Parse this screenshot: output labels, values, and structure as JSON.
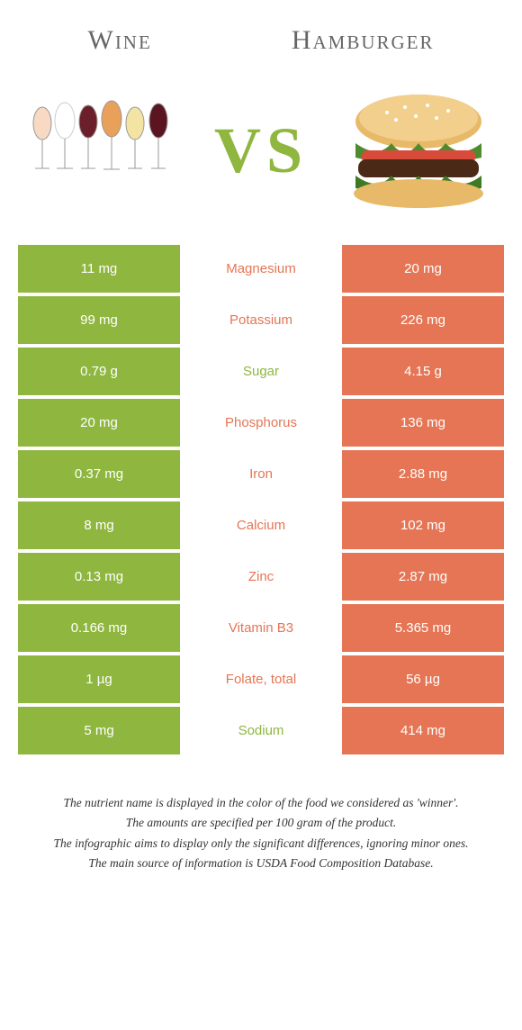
{
  "header": {
    "left": "Wine",
    "right": "Hamburger"
  },
  "vs_text": "VS",
  "colors": {
    "wine": "#8fb63f",
    "hamburger": "#e57554",
    "wine_text": "#8fb63f",
    "hamburger_text": "#e57554"
  },
  "rows": [
    {
      "nutrient": "Magnesium",
      "left": "11 mg",
      "right": "20 mg",
      "winner": "hamburger"
    },
    {
      "nutrient": "Potassium",
      "left": "99 mg",
      "right": "226 mg",
      "winner": "hamburger"
    },
    {
      "nutrient": "Sugar",
      "left": "0.79 g",
      "right": "4.15 g",
      "winner": "wine"
    },
    {
      "nutrient": "Phosphorus",
      "left": "20 mg",
      "right": "136 mg",
      "winner": "hamburger"
    },
    {
      "nutrient": "Iron",
      "left": "0.37 mg",
      "right": "2.88 mg",
      "winner": "hamburger"
    },
    {
      "nutrient": "Calcium",
      "left": "8 mg",
      "right": "102 mg",
      "winner": "hamburger"
    },
    {
      "nutrient": "Zinc",
      "left": "0.13 mg",
      "right": "2.87 mg",
      "winner": "hamburger"
    },
    {
      "nutrient": "Vitamin B3",
      "left": "0.166 mg",
      "right": "5.365 mg",
      "winner": "hamburger"
    },
    {
      "nutrient": "Folate, total",
      "left": "1 µg",
      "right": "56 µg",
      "winner": "hamburger"
    },
    {
      "nutrient": "Sodium",
      "left": "5 mg",
      "right": "414 mg",
      "winner": "wine"
    }
  ],
  "footnotes": [
    "The nutrient name is displayed in the color of the food we considered as 'winner'.",
    "The amounts are specified per 100 gram of the product.",
    "The infographic aims to display only the significant differences, ignoring minor ones.",
    "The main source of information is USDA Food Composition Database."
  ]
}
